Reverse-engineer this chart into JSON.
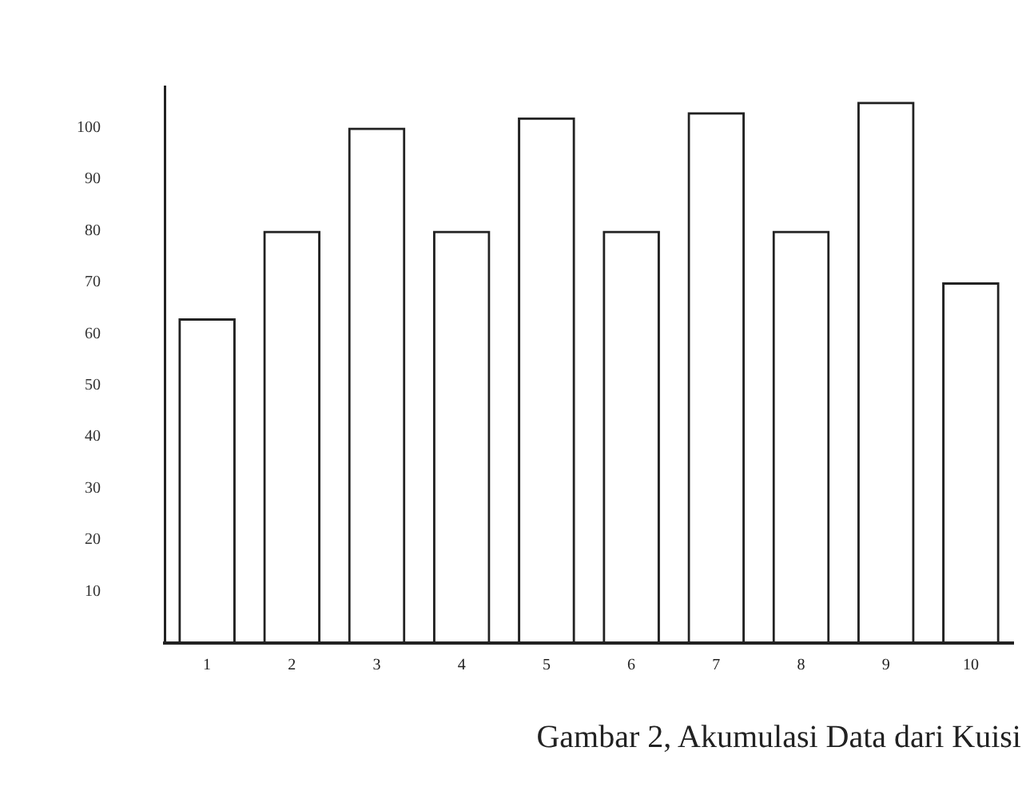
{
  "chart_data": {
    "type": "bar",
    "categories": [
      "1",
      "2",
      "3",
      "4",
      "5",
      "6",
      "7",
      "8",
      "9",
      "10"
    ],
    "values": [
      63,
      80,
      100,
      80,
      102,
      80,
      103,
      80,
      105,
      70
    ],
    "color": "#222222",
    "ylim": [
      0,
      108
    ],
    "yticks": [
      10,
      20,
      30,
      40,
      50,
      60,
      70,
      80,
      90,
      100
    ],
    "grid": false,
    "legend": false,
    "annotations": [
      "Gambar 2, Akumulasi Data dari Kuisi"
    ]
  }
}
